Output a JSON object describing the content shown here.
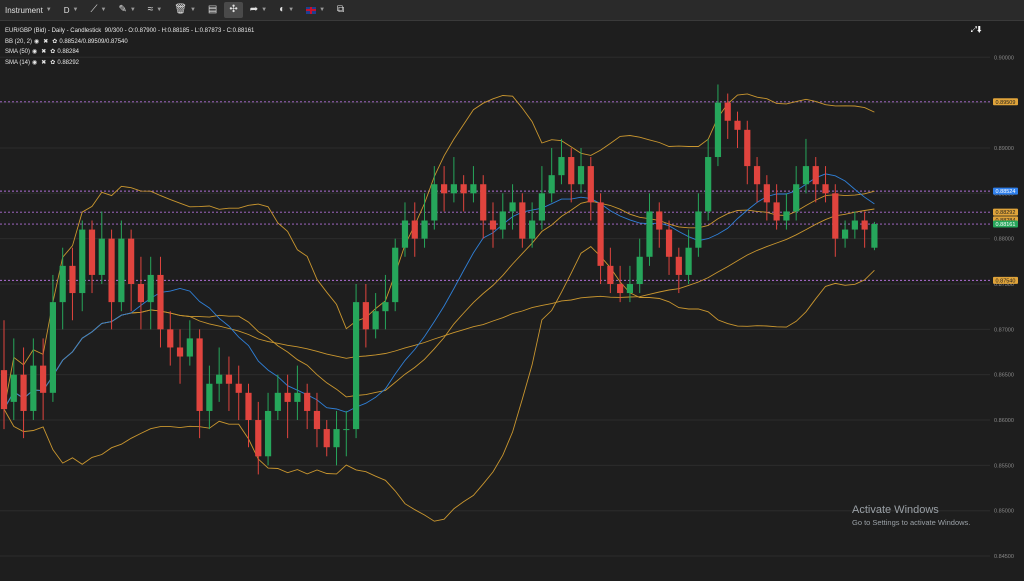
{
  "toolbar": {
    "instrument_label": "Instrument",
    "timeframe_label": "D"
  },
  "legend": {
    "main": "EUR/GBP (Bid) - Daily - Candlestick",
    "main_stats": "90/300 - O:0.87900 - H:0.88185 - L:0.87873 - C:0.88161",
    "bb_name": "BB (20, 2)",
    "bb_values": "0.88524/0.89509/0.87540",
    "sma50_name": "SMA (50)",
    "sma50_value": "0.88284",
    "sma14_name": "SMA (14)",
    "sma14_value": "0.88292"
  },
  "price_axis": {
    "ticks": [
      "0.90000",
      "0.89500",
      "0.89000",
      "0.88500",
      "0.88000",
      "0.87500",
      "0.87000",
      "0.86500",
      "0.86000",
      "0.85500",
      "0.85000",
      "0.84500"
    ],
    "badges": [
      {
        "value": "0.89509",
        "color": "#e0a43a",
        "text_color": "#1e1e1e"
      },
      {
        "value": "0.88524",
        "color": "#2f80ed",
        "text_color": "#ffffff"
      },
      {
        "value": "0.88292",
        "color": "#e0a43a",
        "text_color": "#1e1e1e"
      },
      {
        "value": "0.88284",
        "color": "#e0a43a",
        "text_color": "#1e1e1e"
      },
      {
        "value": "0.88161",
        "color": "#26a65b",
        "text_color": "#ffffff"
      },
      {
        "value": "0.87540",
        "color": "#e0a43a",
        "text_color": "#1e1e1e"
      }
    ],
    "guide_lines": [
      "0.89509",
      "0.88524",
      "0.88292",
      "0.88161",
      "0.87540"
    ]
  },
  "chart_data": {
    "type": "candlestick",
    "instrument": "EUR/GBP (Bid)",
    "timeframe": "Daily",
    "ylim": [
      0.8428,
      0.904
    ],
    "colors": {
      "up": "#26a65b",
      "down": "#e0443e",
      "bb": "#c9962f",
      "sma50": "#c9962f",
      "sma14": "#2f7fd6",
      "guide": "#b06fd6"
    },
    "candles": [
      [
        0.8655,
        0.8612,
        0.871,
        0.859
      ],
      [
        0.862,
        0.865,
        0.869,
        0.86
      ],
      [
        0.865,
        0.861,
        0.868,
        0.858
      ],
      [
        0.861,
        0.866,
        0.869,
        0.86
      ],
      [
        0.866,
        0.863,
        0.869,
        0.86
      ],
      [
        0.863,
        0.873,
        0.876,
        0.862
      ],
      [
        0.873,
        0.877,
        0.879,
        0.87
      ],
      [
        0.877,
        0.874,
        0.879,
        0.871
      ],
      [
        0.874,
        0.881,
        0.882,
        0.872
      ],
      [
        0.881,
        0.876,
        0.882,
        0.874
      ],
      [
        0.876,
        0.88,
        0.883,
        0.875
      ],
      [
        0.88,
        0.873,
        0.881,
        0.87
      ],
      [
        0.873,
        0.88,
        0.882,
        0.872
      ],
      [
        0.88,
        0.875,
        0.881,
        0.872
      ],
      [
        0.875,
        0.873,
        0.878,
        0.87
      ],
      [
        0.873,
        0.876,
        0.878,
        0.87
      ],
      [
        0.876,
        0.87,
        0.878,
        0.868
      ],
      [
        0.87,
        0.868,
        0.872,
        0.866
      ],
      [
        0.868,
        0.867,
        0.87,
        0.864
      ],
      [
        0.867,
        0.869,
        0.871,
        0.866
      ],
      [
        0.869,
        0.861,
        0.87,
        0.858
      ],
      [
        0.861,
        0.864,
        0.866,
        0.859
      ],
      [
        0.864,
        0.865,
        0.868,
        0.862
      ],
      [
        0.865,
        0.864,
        0.867,
        0.861
      ],
      [
        0.864,
        0.863,
        0.866,
        0.86
      ],
      [
        0.863,
        0.86,
        0.864,
        0.857
      ],
      [
        0.86,
        0.856,
        0.862,
        0.854
      ],
      [
        0.856,
        0.861,
        0.863,
        0.855
      ],
      [
        0.861,
        0.863,
        0.865,
        0.86
      ],
      [
        0.863,
        0.862,
        0.865,
        0.858
      ],
      [
        0.862,
        0.863,
        0.866,
        0.86
      ],
      [
        0.863,
        0.861,
        0.864,
        0.859
      ],
      [
        0.861,
        0.859,
        0.863,
        0.857
      ],
      [
        0.859,
        0.857,
        0.86,
        0.856
      ],
      [
        0.857,
        0.859,
        0.861,
        0.855
      ],
      [
        0.859,
        0.859,
        0.861,
        0.856
      ],
      [
        0.859,
        0.873,
        0.875,
        0.858
      ],
      [
        0.873,
        0.87,
        0.875,
        0.868
      ],
      [
        0.87,
        0.872,
        0.874,
        0.869
      ],
      [
        0.872,
        0.873,
        0.876,
        0.87
      ],
      [
        0.873,
        0.879,
        0.88,
        0.872
      ],
      [
        0.879,
        0.882,
        0.884,
        0.878
      ],
      [
        0.882,
        0.88,
        0.884,
        0.878
      ],
      [
        0.88,
        0.882,
        0.885,
        0.879
      ],
      [
        0.882,
        0.886,
        0.888,
        0.881
      ],
      [
        0.886,
        0.885,
        0.888,
        0.883
      ],
      [
        0.885,
        0.886,
        0.889,
        0.884
      ],
      [
        0.886,
        0.885,
        0.887,
        0.883
      ],
      [
        0.885,
        0.886,
        0.888,
        0.884
      ],
      [
        0.886,
        0.882,
        0.887,
        0.88
      ],
      [
        0.882,
        0.881,
        0.884,
        0.879
      ],
      [
        0.881,
        0.883,
        0.885,
        0.88
      ],
      [
        0.883,
        0.884,
        0.886,
        0.881
      ],
      [
        0.884,
        0.88,
        0.885,
        0.879
      ],
      [
        0.88,
        0.882,
        0.884,
        0.879
      ],
      [
        0.882,
        0.885,
        0.888,
        0.881
      ],
      [
        0.885,
        0.887,
        0.89,
        0.884
      ],
      [
        0.887,
        0.889,
        0.891,
        0.886
      ],
      [
        0.889,
        0.886,
        0.89,
        0.884
      ],
      [
        0.886,
        0.888,
        0.89,
        0.885
      ],
      [
        0.888,
        0.884,
        0.889,
        0.882
      ],
      [
        0.884,
        0.877,
        0.885,
        0.875
      ],
      [
        0.877,
        0.875,
        0.879,
        0.874
      ],
      [
        0.875,
        0.874,
        0.877,
        0.873
      ],
      [
        0.874,
        0.875,
        0.877,
        0.873
      ],
      [
        0.875,
        0.878,
        0.88,
        0.874
      ],
      [
        0.878,
        0.883,
        0.885,
        0.877
      ],
      [
        0.883,
        0.881,
        0.884,
        0.879
      ],
      [
        0.881,
        0.878,
        0.882,
        0.876
      ],
      [
        0.878,
        0.876,
        0.879,
        0.874
      ],
      [
        0.876,
        0.879,
        0.881,
        0.875
      ],
      [
        0.879,
        0.883,
        0.885,
        0.878
      ],
      [
        0.883,
        0.889,
        0.891,
        0.882
      ],
      [
        0.889,
        0.895,
        0.897,
        0.888
      ],
      [
        0.895,
        0.893,
        0.896,
        0.891
      ],
      [
        0.893,
        0.892,
        0.894,
        0.89
      ],
      [
        0.892,
        0.888,
        0.893,
        0.886
      ],
      [
        0.888,
        0.886,
        0.889,
        0.884
      ],
      [
        0.886,
        0.884,
        0.887,
        0.882
      ],
      [
        0.884,
        0.882,
        0.886,
        0.881
      ],
      [
        0.882,
        0.883,
        0.885,
        0.881
      ],
      [
        0.883,
        0.886,
        0.888,
        0.882
      ],
      [
        0.886,
        0.888,
        0.891,
        0.885
      ],
      [
        0.888,
        0.886,
        0.889,
        0.884
      ],
      [
        0.886,
        0.885,
        0.888,
        0.884
      ],
      [
        0.885,
        0.88,
        0.886,
        0.878
      ],
      [
        0.88,
        0.881,
        0.882,
        0.879
      ],
      [
        0.881,
        0.882,
        0.883,
        0.88
      ],
      [
        0.882,
        0.881,
        0.883,
        0.879
      ],
      [
        0.879,
        0.88161,
        0.88185,
        0.87873
      ]
    ]
  },
  "watermark": {
    "title": "Activate Windows",
    "subtitle": "Go to Settings to activate Windows."
  }
}
